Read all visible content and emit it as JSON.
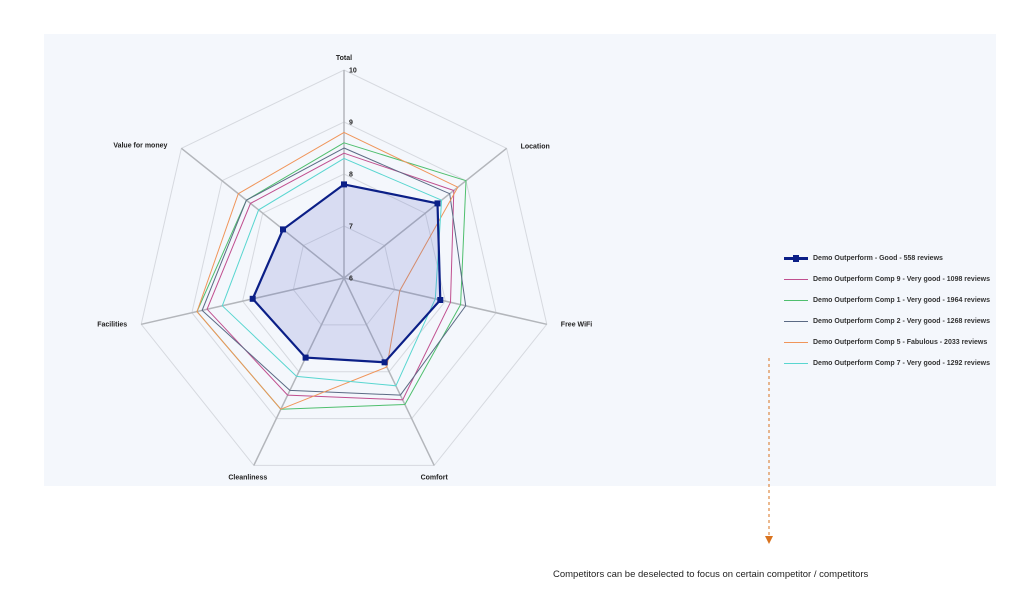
{
  "chart_data": {
    "type": "radar",
    "axes": [
      "Total",
      "Location",
      "Free WiFi",
      "Comfort",
      "Cleanliness",
      "Facilities",
      "Value for money"
    ],
    "range": [
      6,
      10
    ],
    "ticks": [
      "6",
      "7",
      "8",
      "9",
      "10"
    ],
    "grid": true,
    "legend_position": "right",
    "series": [
      {
        "name": "Demo Outperform - Good - 558 reviews",
        "color": "#0b1f87",
        "values": [
          7.8,
          8.3,
          7.9,
          7.8,
          7.7,
          7.8,
          7.5
        ]
      },
      {
        "name": "Demo Outperform Comp 9 - Very good - 1098 reviews",
        "color": "#c04f8f",
        "values": [
          8.4,
          8.7,
          8.1,
          8.6,
          8.5,
          8.7,
          8.3
        ]
      },
      {
        "name": "Demo Outperform Comp 1 - Very good - 1964 reviews",
        "color": "#4fbf6e",
        "values": [
          8.6,
          9.0,
          8.3,
          8.7,
          8.8,
          8.9,
          8.4
        ]
      },
      {
        "name": "Demo Outperform Comp 2 - Very good - 1268 reviews",
        "color": "#5b6a84",
        "values": [
          8.5,
          8.6,
          8.4,
          8.5,
          8.4,
          8.8,
          8.4
        ]
      },
      {
        "name": "Demo Outperform Comp 5 - Fabulous - 2033 reviews",
        "color": "#f0955a",
        "values": [
          8.8,
          8.8,
          7.1,
          7.9,
          8.8,
          8.9,
          8.6
        ]
      },
      {
        "name": "Demo Outperform Comp 7 - Very good - 1292 reviews",
        "color": "#59d6d0",
        "values": [
          8.3,
          8.4,
          7.8,
          8.3,
          8.1,
          8.4,
          8.1
        ]
      }
    ]
  },
  "annotation": {
    "text": "Competitors can be deselected to focus on certain competitor / competitors",
    "arrow_color": "#d9731f"
  }
}
